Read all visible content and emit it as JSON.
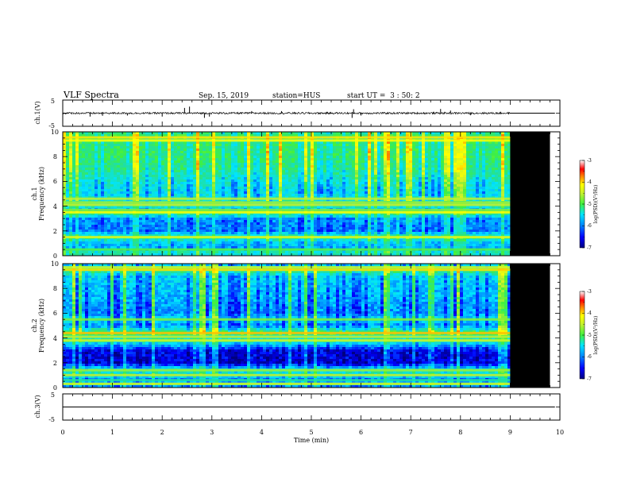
{
  "header": {
    "title": "VLF Spectra",
    "date": "Sep. 15, 2019",
    "station": "station=HUS",
    "start_ut": "start UT =  3 : 50: 2"
  },
  "colors": {
    "colormap": [
      "#000080",
      "#0000ff",
      "#0080ff",
      "#00e5ff",
      "#20e0a0",
      "#40f040",
      "#c0f030",
      "#ffff00",
      "#ff8000",
      "#ff0000",
      "#ffffff"
    ],
    "noData": "#000000",
    "trace": "#000000"
  },
  "chart_data": [
    {
      "type": "line",
      "name": "waveform-ch1",
      "ylabel": "ch.1(V)",
      "ylim": [
        -5,
        5
      ],
      "yticks": [
        "5",
        "-5"
      ],
      "xlim": [
        0,
        10
      ],
      "data_end_min": 9.0,
      "baseline_v": 0.0,
      "after_data_v": 0.0,
      "spikes": [
        {
          "t": 0.55,
          "v": -1.3
        },
        {
          "t": 0.8,
          "v": -1.0
        },
        {
          "t": 1.3,
          "v": -0.9
        },
        {
          "t": 2.0,
          "v": -1.3
        },
        {
          "t": 2.45,
          "v": 2.0
        },
        {
          "t": 2.55,
          "v": 2.5
        },
        {
          "t": 2.85,
          "v": -1.8
        },
        {
          "t": 2.95,
          "v": -1.3
        },
        {
          "t": 3.8,
          "v": 0.8
        },
        {
          "t": 4.4,
          "v": 0.8
        },
        {
          "t": 5.82,
          "v": -1.8
        },
        {
          "t": 5.85,
          "v": 1.5
        },
        {
          "t": 6.0,
          "v": -0.9
        },
        {
          "t": 7.6,
          "v": 1.6
        },
        {
          "t": 7.8,
          "v": 1.0
        },
        {
          "t": 8.2,
          "v": -0.8
        }
      ]
    },
    {
      "type": "heatmap",
      "name": "spectrogram-ch1",
      "ylabel": "ch.1\nFrequency (kHz)",
      "ylim": [
        0,
        10
      ],
      "yticks": [
        "0",
        "2",
        "4",
        "6",
        "8",
        "10"
      ],
      "xlim": [
        0,
        10
      ],
      "data_end_min": 9.0,
      "colorbar": {
        "label": "log(PSD)(V²/Hz)",
        "range": [
          -7,
          -3
        ],
        "ticks": [
          "-3",
          "-4",
          "-5",
          "-6",
          "-7"
        ]
      },
      "freq_profile_logpsd": [
        {
          "f": 0.0,
          "v": -5.6
        },
        {
          "f": 0.3,
          "v": -5.5
        },
        {
          "f": 0.6,
          "v": -6.0
        },
        {
          "f": 1.0,
          "v": -5.9
        },
        {
          "f": 1.5,
          "v": -5.3
        },
        {
          "f": 2.0,
          "v": -6.2
        },
        {
          "f": 3.0,
          "v": -6.1
        },
        {
          "f": 3.5,
          "v": -5.1
        },
        {
          "f": 3.8,
          "v": -6.0
        },
        {
          "f": 4.0,
          "v": -5.4
        },
        {
          "f": 4.3,
          "v": -5.6
        },
        {
          "f": 4.6,
          "v": -5.5
        },
        {
          "f": 5.0,
          "v": -5.8
        },
        {
          "f": 6.0,
          "v": -5.6
        },
        {
          "f": 7.0,
          "v": -5.3
        },
        {
          "f": 8.0,
          "v": -5.2
        },
        {
          "f": 9.0,
          "v": -5.2
        },
        {
          "f": 9.6,
          "v": -5.0
        },
        {
          "f": 10.0,
          "v": -5.4
        }
      ],
      "lines_kHz": [
        0.5,
        1.5,
        3.5,
        3.7,
        4.1,
        4.3,
        4.6,
        9.3,
        9.55
      ]
    },
    {
      "type": "heatmap",
      "name": "spectrogram-ch2",
      "ylabel": "ch.2\nFrequency (kHz)",
      "ylim": [
        0,
        10
      ],
      "yticks": [
        "0",
        "2",
        "4",
        "6",
        "8",
        "10"
      ],
      "xlim": [
        0,
        10
      ],
      "data_end_min": 9.0,
      "colorbar": {
        "label": "log(PSD)(V²/Hz)",
        "range": [
          -7,
          -3
        ],
        "ticks": [
          "-3",
          "-4",
          "-5",
          "-6",
          "-7"
        ]
      },
      "freq_profile_logpsd": [
        {
          "f": 0.0,
          "v": -6.4
        },
        {
          "f": 0.3,
          "v": -5.4
        },
        {
          "f": 0.6,
          "v": -6.3
        },
        {
          "f": 1.0,
          "v": -5.5
        },
        {
          "f": 1.4,
          "v": -5.6
        },
        {
          "f": 2.0,
          "v": -6.7
        },
        {
          "f": 3.0,
          "v": -6.6
        },
        {
          "f": 3.5,
          "v": -5.9
        },
        {
          "f": 3.8,
          "v": -5.4
        },
        {
          "f": 4.1,
          "v": -5.5
        },
        {
          "f": 4.4,
          "v": -4.9
        },
        {
          "f": 5.0,
          "v": -6.1
        },
        {
          "f": 5.5,
          "v": -5.7
        },
        {
          "f": 6.0,
          "v": -6.1
        },
        {
          "f": 7.0,
          "v": -6.0
        },
        {
          "f": 8.0,
          "v": -5.9
        },
        {
          "f": 9.0,
          "v": -5.8
        },
        {
          "f": 9.5,
          "v": -5.0
        },
        {
          "f": 10.0,
          "v": -6.0
        }
      ],
      "lines_kHz": [
        0.3,
        0.6,
        1.0,
        1.4,
        3.8,
        4.1,
        4.4,
        5.5,
        9.5,
        9.7
      ]
    },
    {
      "type": "line",
      "name": "waveform-ch3",
      "ylabel": "ch.3(V)",
      "ylim": [
        -5,
        5
      ],
      "yticks": [
        "5",
        "-5"
      ],
      "xlim": [
        0,
        10
      ],
      "values_v": [
        {
          "t": 0,
          "v": 0.0
        },
        {
          "t": 9.9,
          "v": 0.0
        }
      ],
      "xlabel": "Time (min)",
      "xticks": [
        "0",
        "1",
        "2",
        "3",
        "4",
        "5",
        "6",
        "7",
        "8",
        "9",
        "10"
      ]
    }
  ]
}
